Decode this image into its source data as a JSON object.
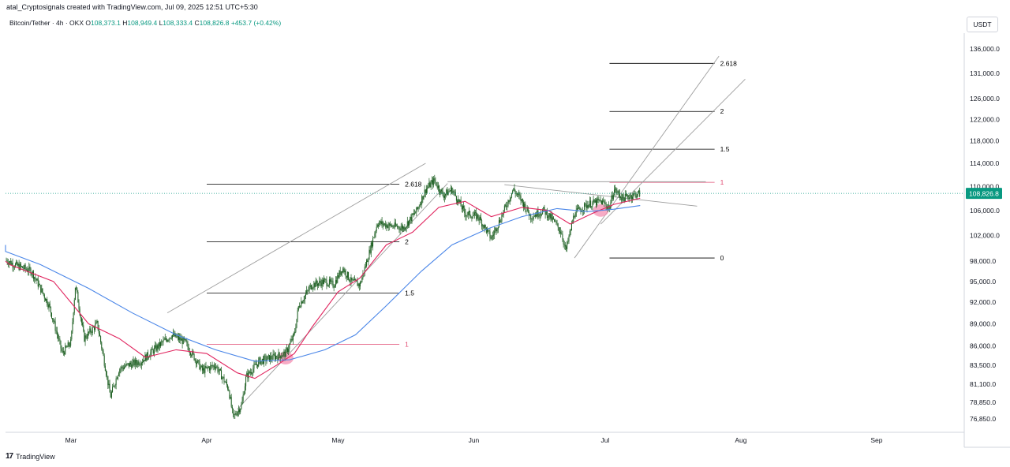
{
  "header": {
    "credit": "atal_Cryptosignals created with TradingView.com, Jul 09, 2025 12:51 UTC+5:30"
  },
  "symbol": {
    "name": "Bitcoin/Tether · 4h · OKX",
    "open_label": "O",
    "open": "108,373.1",
    "high_label": "H",
    "high": "108,949.4",
    "low_label": "L",
    "low": "108,333.4",
    "close_label": "C",
    "close": "108,826.8",
    "change": "+453.7 (+0.42%)"
  },
  "unit": "USDT",
  "footer": {
    "logo": "17",
    "brand": "TradingView"
  },
  "colors": {
    "candle": "#1b5e20",
    "ma_fast": "#e0245e",
    "ma_slow": "#4a86e8",
    "fib_line": "#000000",
    "fib_one": "#e04870",
    "channel": "#9e9e9e",
    "price_tag": "#089981",
    "highlight": "#f48fb1"
  },
  "chart_data": {
    "type": "line",
    "title": "",
    "x_labels": [
      {
        "date": "2025-03-01",
        "text": "Mar"
      },
      {
        "date": "2025-04-01",
        "text": "Apr"
      },
      {
        "date": "2025-05-01",
        "text": "May"
      },
      {
        "date": "2025-06-01",
        "text": "Jun"
      },
      {
        "date": "2025-07-01",
        "text": "Jul"
      },
      {
        "date": "2025-08-01",
        "text": "Aug"
      },
      {
        "date": "2025-09-01",
        "text": "Sep"
      }
    ],
    "y_scale": "log",
    "y_ticks": [
      136000,
      131000,
      126000,
      122000,
      118000,
      114000,
      110000,
      106000,
      102000,
      98000,
      95000,
      92000,
      89000,
      86000,
      83500,
      81100,
      78850,
      76850
    ],
    "y_tick_labels": [
      "136,000.0",
      "131,000.0",
      "126,000.0",
      "122,000.0",
      "118,000.0",
      "114,000.0",
      "110,000.0",
      "106,000.0",
      "102,000.0",
      "98,000.0",
      "95,000.0",
      "92,000.0",
      "89,000.0",
      "86,000.0",
      "83,500.0",
      "81,100.0",
      "78,850.0",
      "76,850.0"
    ],
    "current_price": 108826.8,
    "current_price_label": "108,826.8",
    "price_path": [
      [
        "2025-02-01",
        97500
      ],
      [
        "2025-02-04",
        98500
      ],
      [
        "2025-02-08",
        97000
      ],
      [
        "2025-02-12",
        99000
      ],
      [
        "2025-02-16",
        97500
      ],
      [
        "2025-02-20",
        96500
      ],
      [
        "2025-02-24",
        91500
      ],
      [
        "2025-02-27",
        85000
      ],
      [
        "2025-03-01",
        86500
      ],
      [
        "2025-03-02",
        94500
      ],
      [
        "2025-03-04",
        87000
      ],
      [
        "2025-03-07",
        89000
      ],
      [
        "2025-03-10",
        79500
      ],
      [
        "2025-03-12",
        83000
      ],
      [
        "2025-03-14",
        83500
      ],
      [
        "2025-03-17",
        84000
      ],
      [
        "2025-03-20",
        85500
      ],
      [
        "2025-03-24",
        87500
      ],
      [
        "2025-03-27",
        86500
      ],
      [
        "2025-03-31",
        82800
      ],
      [
        "2025-04-03",
        83500
      ],
      [
        "2025-04-06",
        80500
      ],
      [
        "2025-04-07",
        77000
      ],
      [
        "2025-04-09",
        78500
      ],
      [
        "2025-04-10",
        82000
      ],
      [
        "2025-04-13",
        84000
      ],
      [
        "2025-04-16",
        84500
      ],
      [
        "2025-04-19",
        85000
      ],
      [
        "2025-04-21",
        87500
      ],
      [
        "2025-04-22",
        91500
      ],
      [
        "2025-04-25",
        94500
      ],
      [
        "2025-04-28",
        95000
      ],
      [
        "2025-04-30",
        94500
      ],
      [
        "2025-05-02",
        97000
      ],
      [
        "2025-05-04",
        95000
      ],
      [
        "2025-05-06",
        94500
      ],
      [
        "2025-05-08",
        99000
      ],
      [
        "2025-05-10",
        104000
      ],
      [
        "2025-05-13",
        103500
      ],
      [
        "2025-05-16",
        103200
      ],
      [
        "2025-05-19",
        106000
      ],
      [
        "2025-05-21",
        109500
      ],
      [
        "2025-05-23",
        111000
      ],
      [
        "2025-05-25",
        108500
      ],
      [
        "2025-05-27",
        109500
      ],
      [
        "2025-05-30",
        105500
      ],
      [
        "2025-06-02",
        105000
      ],
      [
        "2025-06-05",
        101500
      ],
      [
        "2025-06-07",
        104500
      ],
      [
        "2025-06-10",
        109500
      ],
      [
        "2025-06-12",
        107500
      ],
      [
        "2025-06-14",
        105000
      ],
      [
        "2025-06-17",
        106000
      ],
      [
        "2025-06-19",
        104500
      ],
      [
        "2025-06-21",
        102500
      ],
      [
        "2025-06-22",
        99500
      ],
      [
        "2025-06-24",
        105500
      ],
      [
        "2025-06-27",
        107000
      ],
      [
        "2025-06-30",
        107500
      ],
      [
        "2025-07-02",
        106500
      ],
      [
        "2025-07-03",
        109500
      ],
      [
        "2025-07-05",
        108000
      ],
      [
        "2025-07-07",
        108500
      ],
      [
        "2025-07-09",
        108826.8
      ]
    ],
    "series": [
      {
        "role": "moving-average-fast",
        "points": [
          [
            "2025-02-01",
            98000
          ],
          [
            "2025-02-15",
            97500
          ],
          [
            "2025-02-25",
            95000
          ],
          [
            "2025-03-05",
            89000
          ],
          [
            "2025-03-12",
            87000
          ],
          [
            "2025-03-18",
            84500
          ],
          [
            "2025-03-25",
            85500
          ],
          [
            "2025-04-01",
            85000
          ],
          [
            "2025-04-08",
            82500
          ],
          [
            "2025-04-12",
            81800
          ],
          [
            "2025-04-17",
            83500
          ],
          [
            "2025-04-21",
            85000
          ],
          [
            "2025-04-25",
            88500
          ],
          [
            "2025-05-01",
            93500
          ],
          [
            "2025-05-06",
            95500
          ],
          [
            "2025-05-12",
            100500
          ],
          [
            "2025-05-18",
            102500
          ],
          [
            "2025-05-24",
            106500
          ],
          [
            "2025-05-30",
            107500
          ],
          [
            "2025-06-05",
            105000
          ],
          [
            "2025-06-12",
            106500
          ],
          [
            "2025-06-18",
            106000
          ],
          [
            "2025-06-23",
            103800
          ],
          [
            "2025-06-28",
            105500
          ],
          [
            "2025-07-03",
            107000
          ],
          [
            "2025-07-09",
            108000
          ]
        ]
      },
      {
        "role": "moving-average-slow",
        "points": [
          [
            "2025-02-01",
            100500
          ],
          [
            "2025-02-12",
            99500
          ],
          [
            "2025-02-22",
            97500
          ],
          [
            "2025-03-05",
            94000
          ],
          [
            "2025-03-15",
            90500
          ],
          [
            "2025-03-25",
            87500
          ],
          [
            "2025-04-03",
            85500
          ],
          [
            "2025-04-12",
            84000
          ],
          [
            "2025-04-20",
            84200
          ],
          [
            "2025-04-28",
            85500
          ],
          [
            "2025-05-05",
            87500
          ],
          [
            "2025-05-12",
            91500
          ],
          [
            "2025-05-20",
            96500
          ],
          [
            "2025-05-27",
            100500
          ],
          [
            "2025-06-04",
            103000
          ],
          [
            "2025-06-12",
            105000
          ],
          [
            "2025-06-20",
            106300
          ],
          [
            "2025-06-27",
            105800
          ],
          [
            "2025-07-03",
            106200
          ],
          [
            "2025-07-09",
            106800
          ]
        ]
      }
    ],
    "fib_sets": [
      {
        "start": "2025-04-01",
        "end": "2025-05-15",
        "levels": [
          {
            "label": "2.618",
            "price": 110400
          },
          {
            "label": "2",
            "price": 101000
          },
          {
            "label": "1.5",
            "price": 93300
          },
          {
            "label": "1",
            "price": 86200
          }
        ]
      },
      {
        "start": "2025-07-02",
        "end": "2025-07-26",
        "levels": [
          {
            "label": "2.618",
            "price": 133000
          },
          {
            "label": "2",
            "price": 123500
          },
          {
            "label": "1.5",
            "price": 116500
          },
          {
            "label": "1",
            "price": 110700
          },
          {
            "label": "0",
            "price": 98500
          }
        ]
      }
    ],
    "channels": [
      [
        [
          "2025-04-08",
          78000
        ],
        [
          "2025-05-26",
          110500
        ]
      ],
      [
        [
          "2025-03-23",
          90500
        ],
        [
          "2025-05-21",
          114000
        ]
      ],
      [
        [
          "2025-06-24",
          98500
        ],
        [
          "2025-07-27",
          134500
        ]
      ],
      [
        [
          "2025-06-30",
          103800
        ],
        [
          "2025-08-02",
          129800
        ]
      ],
      [
        [
          "2025-05-26",
          110800
        ],
        [
          "2025-07-24",
          110800
        ]
      ],
      [
        [
          "2025-06-08",
          110300
        ],
        [
          "2025-07-22",
          106700
        ]
      ]
    ],
    "highlights": [
      {
        "date": "2025-04-19",
        "price": 84400
      },
      {
        "date": "2025-06-30",
        "price": 106000
      }
    ]
  }
}
